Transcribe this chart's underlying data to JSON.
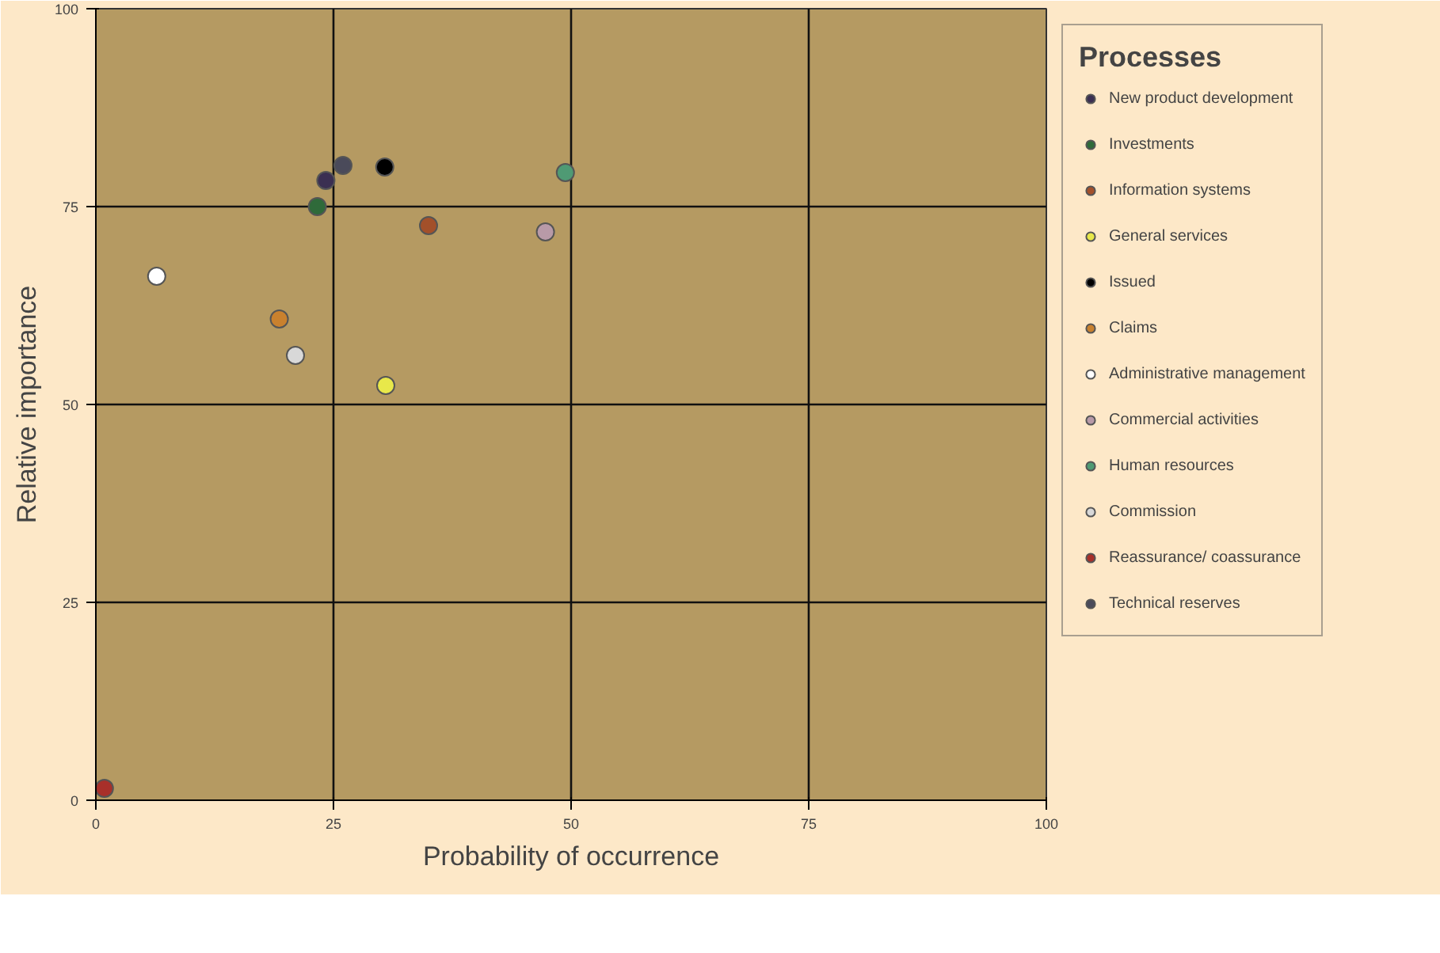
{
  "chart_data": {
    "type": "scatter",
    "xlabel": "Probability of occurrence",
    "ylabel": "Relative importance",
    "legend_title": "Processes",
    "legend": "right",
    "grid": true,
    "marker": "circle",
    "xlim": [
      0,
      100
    ],
    "ylim": [
      0,
      100
    ],
    "xticks": [
      0,
      25,
      50,
      75,
      100
    ],
    "yticks": [
      0,
      25,
      50,
      75,
      100
    ],
    "series": [
      {
        "name": "New product development",
        "color": "#3b2f52",
        "x": [
          24.2
        ],
        "values": [
          78.3
        ]
      },
      {
        "name": "Investments",
        "color": "#2f6a3a",
        "x": [
          23.3
        ],
        "values": [
          75
        ]
      },
      {
        "name": "Information systems",
        "color": "#a3502a",
        "x": [
          35
        ],
        "values": [
          72.6
        ]
      },
      {
        "name": "General services",
        "color": "#e8e84a",
        "x": [
          30.5
        ],
        "values": [
          52.4
        ]
      },
      {
        "name": "Issued",
        "color": "#000000",
        "x": [
          30.4
        ],
        "values": [
          80
        ]
      },
      {
        "name": "Claims",
        "color": "#c9812e",
        "x": [
          19.3
        ],
        "values": [
          60.8
        ]
      },
      {
        "name": "Administrative management",
        "color": "#ffffff",
        "x": [
          6.4
        ],
        "values": [
          66.2
        ]
      },
      {
        "name": "Commercial activities",
        "color": "#b89aa8",
        "x": [
          47.3
        ],
        "values": [
          71.8
        ]
      },
      {
        "name": "Human resources",
        "color": "#4f9a74",
        "x": [
          49.4
        ],
        "values": [
          79.3
        ]
      },
      {
        "name": "Commission",
        "color": "#d8d8d8",
        "x": [
          21
        ],
        "values": [
          56.2
        ]
      },
      {
        "name": "Reassurance/ coassurance",
        "color": "#a8302a",
        "x": [
          0.9
        ],
        "values": [
          1.5
        ]
      },
      {
        "name": "Technical reserves",
        "color": "#4a4a5a",
        "x": [
          26
        ],
        "values": [
          80.2
        ]
      }
    ]
  }
}
